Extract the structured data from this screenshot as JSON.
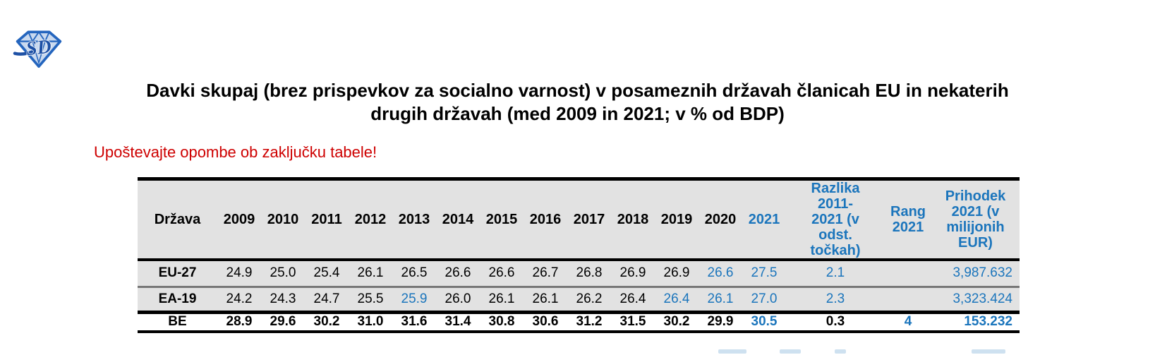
{
  "colors": {
    "accent_blue": "#1B75BC",
    "warning_red": "#CE0000",
    "row_shade": "#E2E2E2",
    "border_black": "#000000",
    "border_gray": "#777777"
  },
  "logo": {
    "letters": "SD",
    "description": "blue gem-shaped logo with stylized SD letters"
  },
  "title": {
    "text": "Davki skupaj (brez prispevkov za socialno varnost) v posameznih državah članicah EU in nekaterih\ndrugih državah (med 2009 in 2021; v % od BDP)"
  },
  "note": {
    "text": "Upoštevajte opombe ob zaključku tabele!"
  },
  "table": {
    "country_header": "Država",
    "year_headers": [
      {
        "label": "2009",
        "color": "black"
      },
      {
        "label": "2010",
        "color": "black"
      },
      {
        "label": "2011",
        "color": "black"
      },
      {
        "label": "2012",
        "color": "black"
      },
      {
        "label": "2013",
        "color": "black"
      },
      {
        "label": "2014",
        "color": "black"
      },
      {
        "label": "2015",
        "color": "black"
      },
      {
        "label": "2016",
        "color": "black"
      },
      {
        "label": "2017",
        "color": "black"
      },
      {
        "label": "2018",
        "color": "black"
      },
      {
        "label": "2019",
        "color": "black"
      },
      {
        "label": "2020",
        "color": "black"
      },
      {
        "label": "2021",
        "color": "blue"
      }
    ],
    "extra_headers": [
      {
        "label": "Razlika\n2011-\n2021 (v\nodst.\ntočkah)",
        "color": "blue"
      },
      {
        "label": "Rang\n2021",
        "color": "blue"
      },
      {
        "label": "Prihodek\n2021 (v\nmilijonih\nEUR)",
        "color": "blue"
      }
    ],
    "rows": [
      {
        "code": "EU-27",
        "bold": false,
        "shaded": true,
        "values": [
          {
            "v": "24.9"
          },
          {
            "v": "25.0"
          },
          {
            "v": "25.4"
          },
          {
            "v": "26.1"
          },
          {
            "v": "26.5"
          },
          {
            "v": "26.6"
          },
          {
            "v": "26.6"
          },
          {
            "v": "26.7"
          },
          {
            "v": "26.8"
          },
          {
            "v": "26.9"
          },
          {
            "v": "26.9"
          },
          {
            "v": "26.6",
            "color": "blue"
          },
          {
            "v": "27.5",
            "color": "blue"
          }
        ],
        "diff": {
          "v": "2.1",
          "color": "blue"
        },
        "rank": {
          "v": ""
        },
        "revenue": {
          "v": "3,987.632",
          "color": "blue"
        }
      },
      {
        "code": "EA-19",
        "bold": false,
        "shaded": true,
        "values": [
          {
            "v": "24.2"
          },
          {
            "v": "24.3"
          },
          {
            "v": "24.7"
          },
          {
            "v": "25.5"
          },
          {
            "v": "25.9",
            "color": "blue"
          },
          {
            "v": "26.0"
          },
          {
            "v": "26.1"
          },
          {
            "v": "26.1"
          },
          {
            "v": "26.2"
          },
          {
            "v": "26.4"
          },
          {
            "v": "26.4",
            "color": "blue"
          },
          {
            "v": "26.1",
            "color": "blue"
          },
          {
            "v": "27.0",
            "color": "blue"
          }
        ],
        "diff": {
          "v": "2.3",
          "color": "blue"
        },
        "rank": {
          "v": ""
        },
        "revenue": {
          "v": "3,323.424",
          "color": "blue"
        }
      },
      {
        "code": "BE",
        "bold": true,
        "shaded": false,
        "values": [
          {
            "v": "28.9"
          },
          {
            "v": "29.6"
          },
          {
            "v": "30.2"
          },
          {
            "v": "31.0"
          },
          {
            "v": "31.6"
          },
          {
            "v": "31.4"
          },
          {
            "v": "30.8"
          },
          {
            "v": "30.6"
          },
          {
            "v": "31.2"
          },
          {
            "v": "31.5"
          },
          {
            "v": "30.2"
          },
          {
            "v": "29.9"
          },
          {
            "v": "30.5",
            "color": "blue"
          }
        ],
        "diff": {
          "v": "0.3"
        },
        "rank": {
          "v": "4",
          "color": "blue"
        },
        "revenue": {
          "v": "153.232",
          "color": "blue"
        }
      }
    ]
  }
}
